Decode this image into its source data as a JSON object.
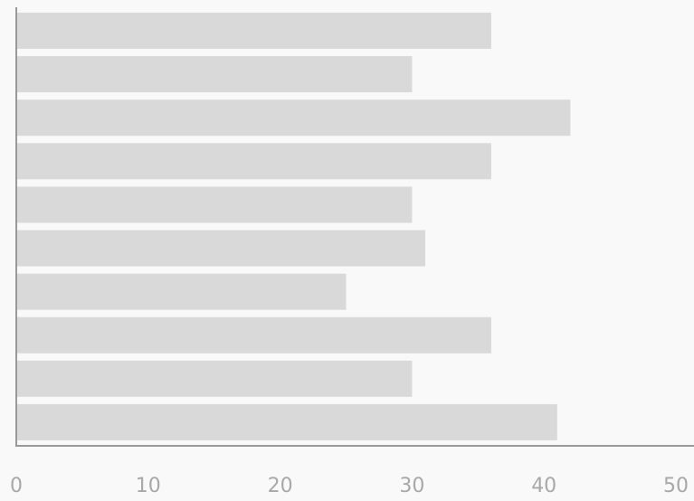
{
  "chart_data": {
    "type": "bar",
    "orientation": "horizontal",
    "title": "",
    "xlabel": "",
    "ylabel": "",
    "categories": [
      "",
      "",
      "",
      "",
      "",
      "",
      "",
      "",
      "",
      ""
    ],
    "values": [
      36,
      30,
      42,
      36,
      30,
      31,
      25,
      36,
      30,
      41
    ],
    "xlim": [
      0,
      50
    ],
    "xticks": [
      "0",
      "10",
      "20",
      "30",
      "40",
      "50"
    ],
    "grid": false,
    "legend": "none",
    "colors": {
      "background": "#f9f9f9",
      "bar": "#d9d9d9",
      "axis": "#999999",
      "tick_label": "#a8a8a8"
    }
  }
}
